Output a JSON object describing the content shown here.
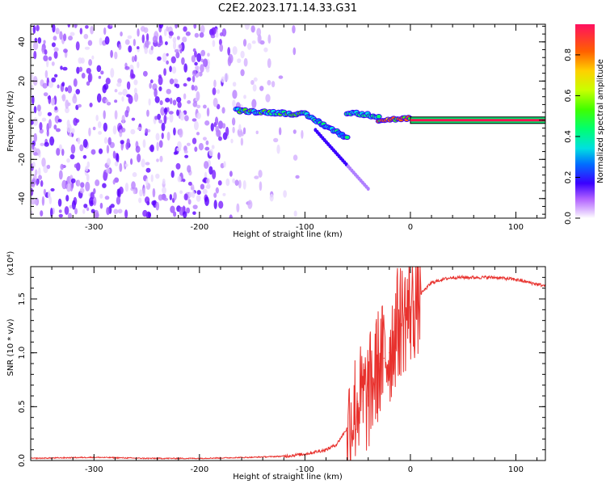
{
  "title": "C2E2.2023.171.14.33.G31",
  "chart_data": [
    {
      "type": "heatmap",
      "xlabel": "Height of straight line (km)",
      "ylabel": "Frequency (Hz)",
      "xlim": [
        -360,
        128
      ],
      "ylim": [
        -50,
        49
      ],
      "x_ticks": [
        -300,
        -200,
        -100,
        0,
        100
      ],
      "x_tick_labels": [
        "-300",
        "-200",
        "-100",
        "0",
        "100"
      ],
      "y_ticks": [
        -40,
        -20,
        0,
        20,
        40
      ],
      "y_tick_labels": [
        "-40",
        "-20",
        "0",
        "20",
        "40"
      ],
      "colorbar": {
        "label": "Normalized spectral amplitude",
        "range": [
          0,
          0.95
        ],
        "ticks": [
          0.0,
          0.2,
          0.4,
          0.6,
          0.8
        ],
        "tick_labels": [
          "0.0",
          "0.2",
          "0.4",
          "0.6",
          "0.8"
        ]
      },
      "grid": false
    },
    {
      "type": "line",
      "xlabel": "Height of straight line (km)",
      "ylabel": "SNR (10 * v/v)",
      "y_multiplier": "(x10⁴)",
      "xlim": [
        -360,
        128
      ],
      "ylim": [
        0,
        1.8
      ],
      "x_ticks": [
        -300,
        -200,
        -100,
        0,
        100
      ],
      "x_tick_labels": [
        "-300",
        "-200",
        "-100",
        "0",
        "100"
      ],
      "y_ticks": [
        0,
        0.5,
        1.0,
        1.5
      ],
      "y_tick_labels": [
        "0.0",
        "0.5",
        "1.0",
        "1.5"
      ],
      "series_color": "#e8312d",
      "x": [
        -360,
        -300,
        -250,
        -200,
        -150,
        -120,
        -100,
        -80,
        -70,
        -60,
        -50,
        -45,
        -40,
        -35,
        -30,
        -25,
        -20,
        -15,
        -10,
        -5,
        0,
        10,
        20,
        30,
        40,
        60,
        80,
        100,
        128
      ],
      "y": [
        0.02,
        0.03,
        0.02,
        0.02,
        0.03,
        0.04,
        0.06,
        0.1,
        0.15,
        0.3,
        0.55,
        0.55,
        0.6,
        0.75,
        0.9,
        0.95,
        1.0,
        1.2,
        1.3,
        1.35,
        1.4,
        1.55,
        1.65,
        1.68,
        1.7,
        1.7,
        1.7,
        1.68,
        1.62
      ],
      "grid": false
    }
  ]
}
